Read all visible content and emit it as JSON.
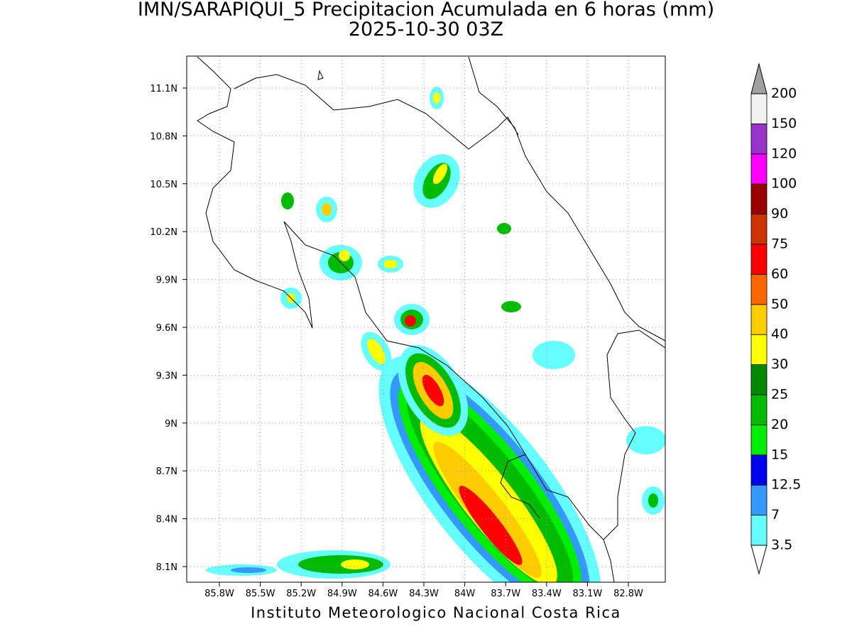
{
  "header": {
    "title": "IMN/SARAPIQUI_5 Precipitacion Acumulada en 6 horas (mm)",
    "subtitle": "2025-10-30 03Z"
  },
  "map": {
    "lon_labels": [
      "85.8W",
      "85.5W",
      "85.2W",
      "84.9W",
      "84.6W",
      "84.3W",
      "84W",
      "83.7W",
      "83.4W",
      "83.1W",
      "82.8W"
    ],
    "lat_labels": [
      "11.1N",
      "10.8N",
      "10.5N",
      "10.2N",
      "9.9N",
      "9.6N",
      "9.3N",
      "9N",
      "8.7N",
      "8.4N",
      "8.1N"
    ]
  },
  "colorbar": {
    "labels": [
      "3.5",
      "7",
      "12.5",
      "15",
      "20",
      "25",
      "30",
      "40",
      "50",
      "60",
      "75",
      "90",
      "100",
      "120",
      "150",
      "200"
    ],
    "colors": [
      "#66ffff",
      "#3399ff",
      "#0000ee",
      "#00ee00",
      "#00bb00",
      "#008800",
      "#ffff00",
      "#ffcc00",
      "#ff6600",
      "#ff0000",
      "#cc3300",
      "#990000",
      "#ff00ff",
      "#9933cc",
      "#f2f2f2"
    ],
    "over_color": "#a0a0a0",
    "under_color": "#ffffff"
  },
  "footer": {
    "text": "Instituto Meteorologico Nacional Costa Rica"
  }
}
